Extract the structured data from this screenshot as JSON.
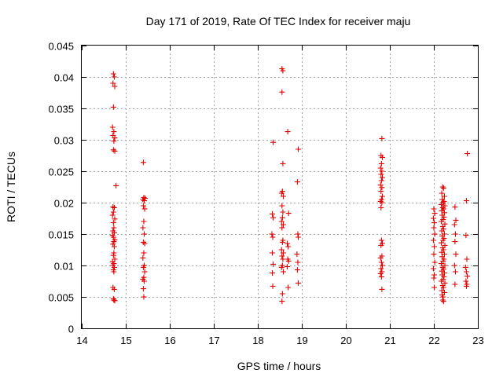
{
  "chart_data": {
    "type": "scatter",
    "title": "Day 171 of 2019, Rate Of TEC Index for receiver maju",
    "xlabel": "GPS time / hours",
    "ylabel": "ROTI / TECUs",
    "xlim": [
      14,
      23
    ],
    "ylim": [
      0,
      0.045
    ],
    "xticks": [
      "14",
      "15",
      "16",
      "17",
      "18",
      "19",
      "20",
      "21",
      "22",
      "23"
    ],
    "yticks": [
      "0",
      "0.005",
      "0.01",
      "0.015",
      "0.02",
      "0.025",
      "0.03",
      "0.035",
      "0.04",
      "0.045"
    ],
    "grid": true,
    "marker": "+",
    "marker_color": "#e00000",
    "series": [
      {
        "name": "ROTI",
        "points": [
          [
            14.72,
            0.0405
          ],
          [
            14.74,
            0.04
          ],
          [
            14.71,
            0.039
          ],
          [
            14.75,
            0.0385
          ],
          [
            14.72,
            0.0352
          ],
          [
            14.7,
            0.032
          ],
          [
            14.73,
            0.0313
          ],
          [
            14.71,
            0.0307
          ],
          [
            14.75,
            0.0303
          ],
          [
            14.73,
            0.0298
          ],
          [
            14.72,
            0.0284
          ],
          [
            14.75,
            0.0282
          ],
          [
            14.78,
            0.0227
          ],
          [
            14.71,
            0.0193
          ],
          [
            14.74,
            0.0192
          ],
          [
            14.72,
            0.0185
          ],
          [
            14.7,
            0.018
          ],
          [
            14.75,
            0.0174
          ],
          [
            14.72,
            0.0168
          ],
          [
            14.73,
            0.016
          ],
          [
            14.71,
            0.0155
          ],
          [
            14.74,
            0.0152
          ],
          [
            14.7,
            0.0148
          ],
          [
            14.72,
            0.0145
          ],
          [
            14.75,
            0.0141
          ],
          [
            14.73,
            0.0138
          ],
          [
            14.71,
            0.0134
          ],
          [
            14.74,
            0.013
          ],
          [
            14.73,
            0.012
          ],
          [
            14.72,
            0.0116
          ],
          [
            14.75,
            0.011
          ],
          [
            14.7,
            0.0106
          ],
          [
            14.73,
            0.0103
          ],
          [
            14.71,
            0.01
          ],
          [
            14.74,
            0.0097
          ],
          [
            14.72,
            0.0093
          ],
          [
            14.73,
            0.009
          ],
          [
            14.71,
            0.0065
          ],
          [
            14.74,
            0.0062
          ],
          [
            14.72,
            0.0047
          ],
          [
            14.73,
            0.0045
          ],
          [
            14.75,
            0.0044
          ],
          [
            15.4,
            0.0264
          ],
          [
            15.41,
            0.0208
          ],
          [
            15.44,
            0.0207
          ],
          [
            15.39,
            0.0205
          ],
          [
            15.42,
            0.0203
          ],
          [
            15.4,
            0.0195
          ],
          [
            15.43,
            0.019
          ],
          [
            15.41,
            0.017
          ],
          [
            15.39,
            0.016
          ],
          [
            15.42,
            0.015
          ],
          [
            15.4,
            0.0137
          ],
          [
            15.43,
            0.0135
          ],
          [
            15.41,
            0.012
          ],
          [
            15.39,
            0.0112
          ],
          [
            15.42,
            0.01
          ],
          [
            15.4,
            0.0097
          ],
          [
            15.43,
            0.009
          ],
          [
            15.41,
            0.0081
          ],
          [
            15.39,
            0.0078
          ],
          [
            15.42,
            0.0075
          ],
          [
            15.4,
            0.0063
          ],
          [
            15.41,
            0.005
          ],
          [
            18.35,
            0.0296
          ],
          [
            18.33,
            0.0182
          ],
          [
            18.35,
            0.0176
          ],
          [
            18.32,
            0.015
          ],
          [
            18.34,
            0.0145
          ],
          [
            18.33,
            0.012
          ],
          [
            18.35,
            0.0102
          ],
          [
            18.33,
            0.0088
          ],
          [
            18.34,
            0.0067
          ],
          [
            18.55,
            0.0413
          ],
          [
            18.57,
            0.041
          ],
          [
            18.55,
            0.0376
          ],
          [
            18.57,
            0.0262
          ],
          [
            18.56,
            0.0218
          ],
          [
            18.54,
            0.0215
          ],
          [
            18.58,
            0.021
          ],
          [
            18.55,
            0.0195
          ],
          [
            18.57,
            0.0185
          ],
          [
            18.56,
            0.0176
          ],
          [
            18.54,
            0.017
          ],
          [
            18.58,
            0.0165
          ],
          [
            18.55,
            0.016
          ],
          [
            18.57,
            0.014
          ],
          [
            18.56,
            0.0137
          ],
          [
            18.54,
            0.0125
          ],
          [
            18.58,
            0.012
          ],
          [
            18.55,
            0.0115
          ],
          [
            18.57,
            0.011
          ],
          [
            18.56,
            0.01
          ],
          [
            18.54,
            0.0097
          ],
          [
            18.58,
            0.009
          ],
          [
            18.56,
            0.0055
          ],
          [
            18.55,
            0.0043
          ],
          [
            18.68,
            0.0313
          ],
          [
            18.7,
            0.0183
          ],
          [
            18.67,
            0.0135
          ],
          [
            18.69,
            0.013
          ],
          [
            18.68,
            0.011
          ],
          [
            18.7,
            0.0107
          ],
          [
            18.67,
            0.0098
          ],
          [
            18.69,
            0.0065
          ],
          [
            18.92,
            0.0285
          ],
          [
            18.9,
            0.0233
          ],
          [
            18.91,
            0.015
          ],
          [
            18.92,
            0.0145
          ],
          [
            18.89,
            0.0118
          ],
          [
            18.91,
            0.0105
          ],
          [
            18.9,
            0.0093
          ],
          [
            18.92,
            0.0072
          ],
          [
            20.82,
            0.0302
          ],
          [
            20.8,
            0.0275
          ],
          [
            20.83,
            0.0272
          ],
          [
            20.81,
            0.0262
          ],
          [
            20.79,
            0.0255
          ],
          [
            20.82,
            0.025
          ],
          [
            20.8,
            0.0245
          ],
          [
            20.83,
            0.024
          ],
          [
            20.81,
            0.0235
          ],
          [
            20.79,
            0.0228
          ],
          [
            20.82,
            0.0224
          ],
          [
            20.8,
            0.0218
          ],
          [
            20.83,
            0.021
          ],
          [
            20.81,
            0.0205
          ],
          [
            20.79,
            0.0202
          ],
          [
            20.82,
            0.02
          ],
          [
            20.8,
            0.0192
          ],
          [
            20.81,
            0.014
          ],
          [
            20.83,
            0.0135
          ],
          [
            20.8,
            0.0132
          ],
          [
            20.82,
            0.0115
          ],
          [
            20.79,
            0.0112
          ],
          [
            20.81,
            0.0105
          ],
          [
            20.83,
            0.01
          ],
          [
            20.8,
            0.0095
          ],
          [
            20.82,
            0.009
          ],
          [
            20.79,
            0.0087
          ],
          [
            20.81,
            0.0082
          ],
          [
            20.82,
            0.0062
          ],
          [
            22.0,
            0.019
          ],
          [
            22.02,
            0.0183
          ],
          [
            21.99,
            0.0175
          ],
          [
            22.01,
            0.0168
          ],
          [
            22.0,
            0.016
          ],
          [
            22.02,
            0.015
          ],
          [
            21.99,
            0.014
          ],
          [
            22.01,
            0.013
          ],
          [
            22.0,
            0.0118
          ],
          [
            22.02,
            0.0105
          ],
          [
            21.99,
            0.0095
          ],
          [
            22.01,
            0.0085
          ],
          [
            22.0,
            0.008
          ],
          [
            22.01,
            0.0065
          ],
          [
            22.2,
            0.0225
          ],
          [
            22.22,
            0.0223
          ],
          [
            22.18,
            0.0215
          ],
          [
            22.24,
            0.021
          ],
          [
            22.19,
            0.0205
          ],
          [
            22.23,
            0.0202
          ],
          [
            22.21,
            0.02
          ],
          [
            22.17,
            0.0197
          ],
          [
            22.25,
            0.0195
          ],
          [
            22.2,
            0.0192
          ],
          [
            22.22,
            0.019
          ],
          [
            22.18,
            0.0187
          ],
          [
            22.24,
            0.0184
          ],
          [
            22.19,
            0.018
          ],
          [
            22.23,
            0.0177
          ],
          [
            22.21,
            0.0173
          ],
          [
            22.17,
            0.017
          ],
          [
            22.25,
            0.0166
          ],
          [
            22.2,
            0.0162
          ],
          [
            22.22,
            0.0158
          ],
          [
            22.18,
            0.0155
          ],
          [
            22.24,
            0.015
          ],
          [
            22.19,
            0.0147
          ],
          [
            22.23,
            0.0143
          ],
          [
            22.21,
            0.014
          ],
          [
            22.17,
            0.0136
          ],
          [
            22.25,
            0.0132
          ],
          [
            22.2,
            0.0128
          ],
          [
            22.22,
            0.0125
          ],
          [
            22.18,
            0.0121
          ],
          [
            22.24,
            0.0118
          ],
          [
            22.19,
            0.0114
          ],
          [
            22.23,
            0.011
          ],
          [
            22.21,
            0.0107
          ],
          [
            22.17,
            0.0103
          ],
          [
            22.25,
            0.01
          ],
          [
            22.2,
            0.0097
          ],
          [
            22.22,
            0.0094
          ],
          [
            22.18,
            0.0091
          ],
          [
            22.24,
            0.0088
          ],
          [
            22.19,
            0.0085
          ],
          [
            22.23,
            0.0082
          ],
          [
            22.21,
            0.0078
          ],
          [
            22.17,
            0.0075
          ],
          [
            22.25,
            0.0072
          ],
          [
            22.2,
            0.0068
          ],
          [
            22.22,
            0.0065
          ],
          [
            22.18,
            0.006
          ],
          [
            22.24,
            0.0057
          ],
          [
            22.19,
            0.0053
          ],
          [
            22.21,
            0.005
          ],
          [
            22.2,
            0.0045
          ],
          [
            22.22,
            0.0043
          ],
          [
            22.48,
            0.0193
          ],
          [
            22.5,
            0.0172
          ],
          [
            22.47,
            0.0165
          ],
          [
            22.49,
            0.015
          ],
          [
            22.48,
            0.0138
          ],
          [
            22.5,
            0.0118
          ],
          [
            22.47,
            0.01
          ],
          [
            22.49,
            0.009
          ],
          [
            22.48,
            0.007
          ],
          [
            22.76,
            0.0278
          ],
          [
            22.74,
            0.0203
          ],
          [
            22.73,
            0.0148
          ],
          [
            22.75,
            0.011
          ],
          [
            22.72,
            0.0097
          ],
          [
            22.74,
            0.009
          ],
          [
            22.76,
            0.0083
          ],
          [
            22.73,
            0.0075
          ],
          [
            22.75,
            0.007
          ],
          [
            22.74,
            0.0067
          ]
        ]
      }
    ]
  }
}
